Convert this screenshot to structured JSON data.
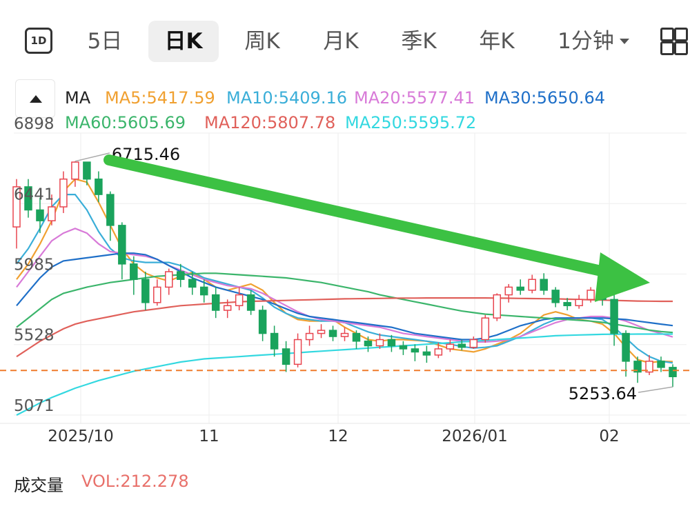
{
  "toolbar": {
    "items": [
      "5日",
      "日K",
      "周K",
      "月K",
      "季K",
      "年K",
      "1分钟"
    ],
    "active": "日K",
    "icon_1d": "1D"
  },
  "ma": {
    "label": "MA",
    "lines": [
      {
        "text": "MA5:5417.59",
        "color": "#f0a030"
      },
      {
        "text": "MA10:5409.16",
        "color": "#3aaed8"
      },
      {
        "text": "MA20:5577.41",
        "color": "#d87ad8"
      },
      {
        "text": "MA30:5650.64",
        "color": "#1e6fc8"
      },
      {
        "text": "MA60:5605.69",
        "color": "#3bb56b"
      },
      {
        "text": "MA120:5807.78",
        "color": "#e0605a"
      },
      {
        "text": "MA250:5595.72",
        "color": "#33d8e0"
      }
    ]
  },
  "chart_data": {
    "type": "line",
    "y_ticks": [
      "6898",
      "6441",
      "5985",
      "5528",
      "5071"
    ],
    "x_ticks": [
      "2025/10",
      "11",
      "12",
      "2026/01",
      "02"
    ],
    "ylim": [
      5071,
      6898
    ],
    "annotations": {
      "high": "6715.46",
      "low": "5253.64"
    },
    "colors": {
      "up": "#e8454f",
      "down": "#1aa35c",
      "arrow": "#3cc143",
      "dashed": "#ef7a2a"
    },
    "series": [
      {
        "name": "MA5",
        "color": "#f0a030",
        "values": [
          5950,
          6050,
          6180,
          6330,
          6520,
          6600,
          6580,
          6450,
          6300,
          6150,
          6050,
          5990,
          5960,
          5940,
          5970,
          5995,
          5950,
          5900,
          5880,
          5900,
          5920,
          5880,
          5800,
          5730,
          5690,
          5680,
          5680,
          5690,
          5640,
          5600,
          5560,
          5550,
          5560,
          5560,
          5555,
          5550,
          5525,
          5500,
          5490,
          5480,
          5500,
          5530,
          5560,
          5600,
          5660,
          5720,
          5740,
          5720,
          5690,
          5680,
          5660,
          5600,
          5510,
          5430,
          5410,
          5420,
          5418
        ]
      },
      {
        "name": "MA10",
        "color": "#3aaed8",
        "values": [
          6050,
          6150,
          6280,
          6420,
          6500,
          6500,
          6400,
          6260,
          6150,
          6090,
          6070,
          6060,
          6060,
          6060,
          6040,
          6000,
          5960,
          5940,
          5920,
          5900,
          5880,
          5830,
          5770,
          5730,
          5700,
          5690,
          5680,
          5680,
          5670,
          5640,
          5610,
          5590,
          5580,
          5570,
          5560,
          5550,
          5540,
          5530,
          5515,
          5505,
          5510,
          5520,
          5550,
          5580,
          5620,
          5660,
          5690,
          5700,
          5700,
          5700,
          5690,
          5640,
          5570,
          5500,
          5450,
          5420,
          5409
        ]
      },
      {
        "name": "MA20",
        "color": "#d87ad8",
        "values": [
          5900,
          6000,
          6100,
          6200,
          6250,
          6280,
          6250,
          6180,
          6130,
          6120,
          6110,
          6100,
          6080,
          6040,
          6010,
          5980,
          5950,
          5930,
          5910,
          5900,
          5890,
          5860,
          5820,
          5780,
          5740,
          5710,
          5690,
          5680,
          5670,
          5660,
          5650,
          5640,
          5620,
          5600,
          5590,
          5580,
          5570,
          5560,
          5550,
          5545,
          5545,
          5550,
          5560,
          5580,
          5610,
          5640,
          5670,
          5690,
          5700,
          5710,
          5710,
          5700,
          5680,
          5650,
          5620,
          5600,
          5577
        ]
      },
      {
        "name": "MA30",
        "color": "#1e6fc8",
        "values": [
          5780,
          5870,
          5960,
          6030,
          6070,
          6080,
          6090,
          6100,
          6110,
          6120,
          6120,
          6110,
          6080,
          6040,
          6000,
          5960,
          5930,
          5900,
          5880,
          5860,
          5840,
          5820,
          5790,
          5760,
          5730,
          5710,
          5700,
          5690,
          5680,
          5670,
          5660,
          5650,
          5640,
          5620,
          5600,
          5590,
          5580,
          5570,
          5560,
          5560,
          5570,
          5590,
          5620,
          5650,
          5670,
          5690,
          5700,
          5700,
          5700,
          5700,
          5700,
          5695,
          5690,
          5680,
          5670,
          5660,
          5651
        ]
      },
      {
        "name": "MA60",
        "color": "#3bb56b",
        "values": [
          5640,
          5700,
          5760,
          5820,
          5860,
          5880,
          5900,
          5915,
          5930,
          5940,
          5950,
          5960,
          5970,
          5975,
          5980,
          5985,
          5990,
          5990,
          5985,
          5980,
          5975,
          5970,
          5965,
          5960,
          5950,
          5940,
          5930,
          5915,
          5900,
          5885,
          5870,
          5850,
          5835,
          5820,
          5805,
          5790,
          5775,
          5760,
          5745,
          5735,
          5725,
          5720,
          5715,
          5710,
          5705,
          5700,
          5695,
          5690,
          5685,
          5680,
          5672,
          5660,
          5648,
          5635,
          5622,
          5612,
          5606
        ]
      },
      {
        "name": "MA120",
        "color": "#e0605a",
        "values": [
          5450,
          5500,
          5550,
          5590,
          5630,
          5660,
          5680,
          5695,
          5710,
          5725,
          5740,
          5750,
          5760,
          5770,
          5780,
          5785,
          5790,
          5795,
          5800,
          5805,
          5808,
          5810,
          5812,
          5814,
          5816,
          5818,
          5820,
          5822,
          5824,
          5825,
          5826,
          5827,
          5828,
          5829,
          5829,
          5830,
          5830,
          5830,
          5830,
          5830,
          5830,
          5829,
          5828,
          5827,
          5826,
          5825,
          5824,
          5822,
          5820,
          5818,
          5816,
          5814,
          5812,
          5810,
          5809,
          5808,
          5808
        ]
      },
      {
        "name": "MA250",
        "color": "#33d8e0",
        "values": [
          5071,
          5110,
          5150,
          5185,
          5215,
          5245,
          5270,
          5295,
          5315,
          5335,
          5355,
          5370,
          5385,
          5400,
          5415,
          5425,
          5435,
          5440,
          5445,
          5450,
          5455,
          5460,
          5465,
          5470,
          5475,
          5480,
          5485,
          5490,
          5495,
          5500,
          5505,
          5510,
          5515,
          5520,
          5525,
          5530,
          5535,
          5540,
          5545,
          5550,
          5555,
          5560,
          5565,
          5570,
          5575,
          5580,
          5585,
          5588,
          5590,
          5592,
          5594,
          5595,
          5595,
          5596,
          5596,
          5596,
          5596
        ]
      }
    ],
    "candles": [
      [
        6290,
        6550,
        6150,
        6600
      ],
      [
        6550,
        6400,
        6350,
        6600
      ],
      [
        6400,
        6330,
        6250,
        6480
      ],
      [
        6330,
        6420,
        6300,
        6500
      ],
      [
        6420,
        6600,
        6380,
        6650
      ],
      [
        6600,
        6710,
        6550,
        6715
      ],
      [
        6710,
        6600,
        6560,
        6700
      ],
      [
        6600,
        6500,
        6450,
        6650
      ],
      [
        6500,
        6300,
        6200,
        6520
      ],
      [
        6300,
        6050,
        5950,
        6320
      ],
      [
        6050,
        5950,
        5850,
        6100
      ],
      [
        5950,
        5800,
        5750,
        6000
      ],
      [
        5800,
        5900,
        5780,
        5950
      ],
      [
        5900,
        6000,
        5850,
        6020
      ],
      [
        6000,
        5950,
        5900,
        6050
      ],
      [
        5950,
        5900,
        5850,
        6000
      ],
      [
        5900,
        5850,
        5800,
        5950
      ],
      [
        5850,
        5750,
        5700,
        5900
      ],
      [
        5750,
        5780,
        5700,
        5820
      ],
      [
        5780,
        5850,
        5750,
        5900
      ],
      [
        5850,
        5750,
        5720,
        5880
      ],
      [
        5750,
        5600,
        5550,
        5780
      ],
      [
        5600,
        5500,
        5450,
        5650
      ],
      [
        5500,
        5400,
        5350,
        5550
      ],
      [
        5400,
        5560,
        5380,
        5600
      ],
      [
        5560,
        5600,
        5520,
        5650
      ],
      [
        5600,
        5620,
        5570,
        5660
      ],
      [
        5620,
        5580,
        5550,
        5650
      ],
      [
        5580,
        5600,
        5550,
        5640
      ],
      [
        5600,
        5550,
        5500,
        5620
      ],
      [
        5550,
        5520,
        5480,
        5580
      ],
      [
        5520,
        5560,
        5500,
        5600
      ],
      [
        5560,
        5520,
        5480,
        5590
      ],
      [
        5520,
        5500,
        5460,
        5550
      ],
      [
        5500,
        5480,
        5420,
        5530
      ],
      [
        5480,
        5460,
        5410,
        5520
      ],
      [
        5460,
        5500,
        5440,
        5540
      ],
      [
        5500,
        5530,
        5480,
        5560
      ],
      [
        5530,
        5510,
        5490,
        5560
      ],
      [
        5510,
        5560,
        5500,
        5580
      ],
      [
        5560,
        5700,
        5540,
        5720
      ],
      [
        5700,
        5850,
        5680,
        5860
      ],
      [
        5850,
        5900,
        5800,
        5920
      ],
      [
        5900,
        5880,
        5850,
        5950
      ],
      [
        5880,
        5950,
        5860,
        5980
      ],
      [
        5950,
        5880,
        5850,
        5990
      ],
      [
        5880,
        5800,
        5770,
        5900
      ],
      [
        5800,
        5780,
        5750,
        5830
      ],
      [
        5780,
        5820,
        5760,
        5850
      ],
      [
        5820,
        5880,
        5800,
        5900
      ],
      [
        5880,
        5820,
        5780,
        5920
      ],
      [
        5820,
        5600,
        5520,
        5850
      ],
      [
        5600,
        5420,
        5320,
        5620
      ],
      [
        5420,
        5350,
        5280,
        5450
      ],
      [
        5350,
        5420,
        5330,
        5460
      ],
      [
        5420,
        5380,
        5350,
        5450
      ],
      [
        5380,
        5320,
        5253,
        5400
      ]
    ]
  },
  "volume": {
    "label": "成交量",
    "value": "VOL:212.278",
    "value_color": "#e8706a"
  }
}
